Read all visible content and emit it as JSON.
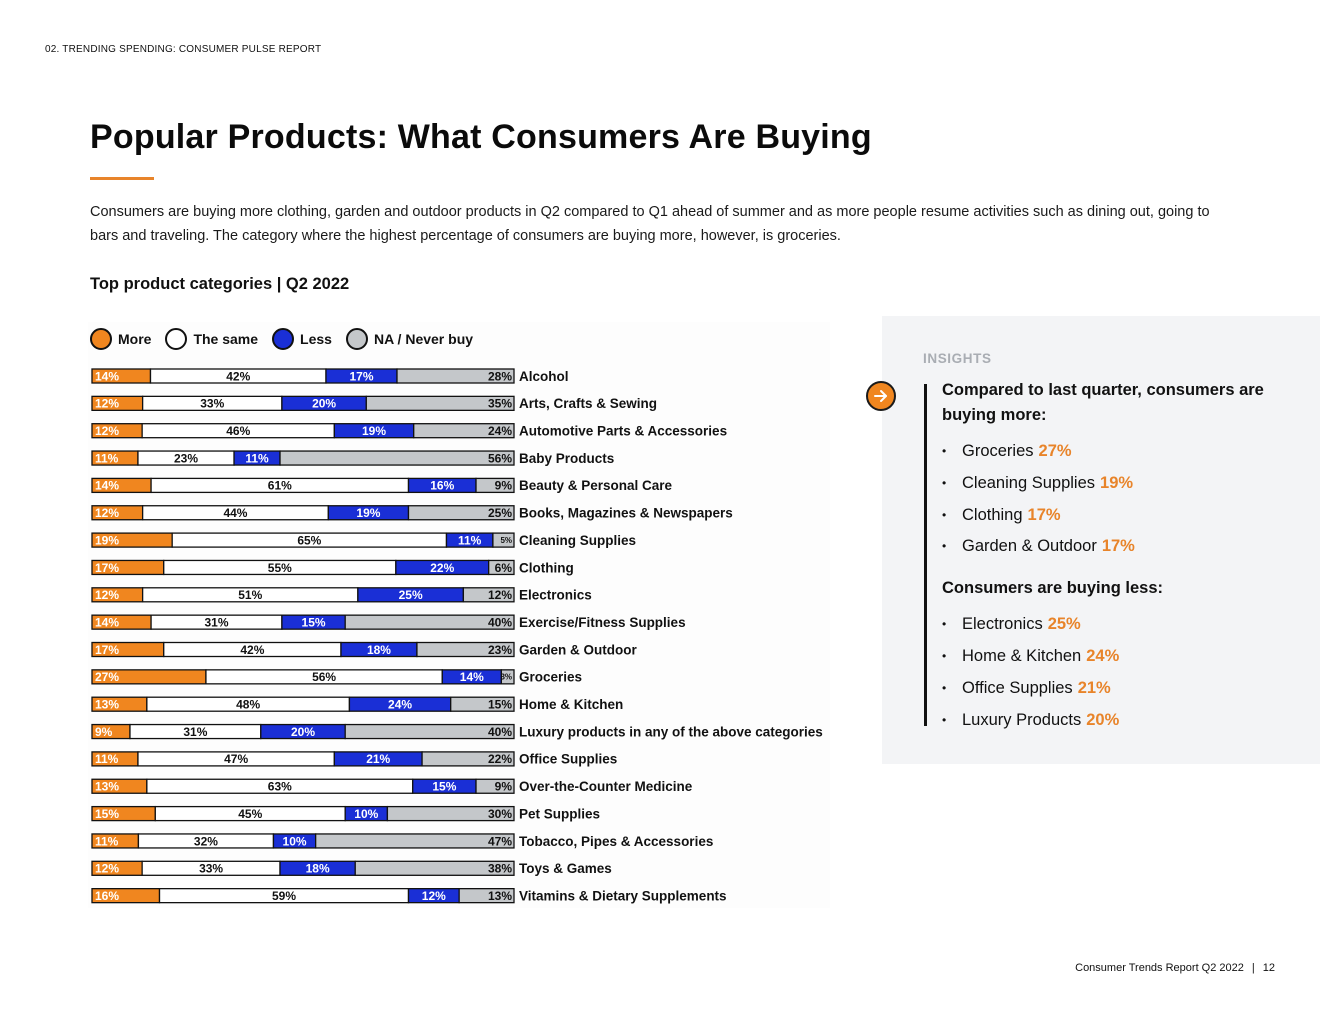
{
  "running_header": "02. TRENDING SPENDING: CONSUMER PULSE REPORT",
  "title": "Popular Products: What Consumers Are Buying",
  "intro": "Consumers are buying more clothing, garden and outdoor products in Q2 compared to Q1 ahead of summer and as more people resume activities such as dining out, going to bars and traveling. The category where the highest percentage of consumers are buying more, however, is groceries.",
  "chart_heading": "Top product categories | Q2 2022",
  "colors": {
    "accent": "#e8842a",
    "more": "#f0861f",
    "same": "#ffffff",
    "less": "#1a2fd6",
    "na": "#c4c7ca",
    "ink": "#111111"
  },
  "chart_data": {
    "type": "bar",
    "orientation": "horizontal",
    "stacked": true,
    "percent_scale": true,
    "legend_position": "top-left",
    "legend": [
      {
        "key": "more",
        "label": "More",
        "color": "#f0861f"
      },
      {
        "key": "same",
        "label": "The same",
        "color": "#ffffff"
      },
      {
        "key": "less",
        "label": "Less",
        "color": "#1a2fd6"
      },
      {
        "key": "na",
        "label": "NA / Never buy",
        "color": "#c4c7ca"
      }
    ],
    "categories": [
      "Alcohol",
      "Arts, Crafts & Sewing",
      "Automotive Parts & Accessories",
      "Baby Products",
      "Beauty & Personal Care",
      "Books, Magazines & Newspapers",
      "Cleaning Supplies",
      "Clothing",
      "Electronics",
      "Exercise/Fitness Supplies",
      "Garden & Outdoor",
      "Groceries",
      "Home & Kitchen",
      "Luxury products in any of the above categories",
      "Office Supplies",
      "Over-the-Counter Medicine",
      "Pet Supplies",
      "Tobacco, Pipes & Accessories",
      "Toys & Games",
      "Vitamins & Dietary Supplements"
    ],
    "series": [
      {
        "name": "More",
        "values": [
          14,
          12,
          12,
          11,
          14,
          12,
          19,
          17,
          12,
          14,
          17,
          27,
          13,
          9,
          11,
          13,
          15,
          11,
          12,
          16
        ]
      },
      {
        "name": "The same",
        "values": [
          42,
          33,
          46,
          23,
          61,
          44,
          65,
          55,
          51,
          31,
          42,
          56,
          48,
          31,
          47,
          63,
          45,
          32,
          33,
          59
        ]
      },
      {
        "name": "Less",
        "values": [
          17,
          20,
          19,
          11,
          16,
          19,
          11,
          22,
          25,
          15,
          18,
          14,
          24,
          20,
          21,
          15,
          10,
          10,
          18,
          12
        ]
      },
      {
        "name": "NA / Never buy",
        "values": [
          28,
          35,
          24,
          56,
          9,
          25,
          5,
          6,
          12,
          40,
          23,
          3,
          15,
          40,
          22,
          9,
          30,
          47,
          38,
          13
        ]
      }
    ]
  },
  "insights": {
    "label": "INSIGHTS",
    "more_heading": "Compared to last quarter, consumers are buying more:",
    "more_items": [
      {
        "name": "Groceries",
        "pct": "27%"
      },
      {
        "name": "Cleaning Supplies",
        "pct": "19%"
      },
      {
        "name": "Clothing",
        "pct": "17%"
      },
      {
        "name": "Garden & Outdoor",
        "pct": "17%"
      }
    ],
    "less_heading": "Consumers are buying less:",
    "less_items": [
      {
        "name": "Electronics",
        "pct": "25%"
      },
      {
        "name": "Home & Kitchen",
        "pct": "24%"
      },
      {
        "name": "Office Supplies",
        "pct": "21%"
      },
      {
        "name": "Luxury Products",
        "pct": "20%"
      }
    ]
  },
  "footer": {
    "report_name": "Consumer Trends Report Q2 2022",
    "separator": "|",
    "page_number": "12"
  }
}
